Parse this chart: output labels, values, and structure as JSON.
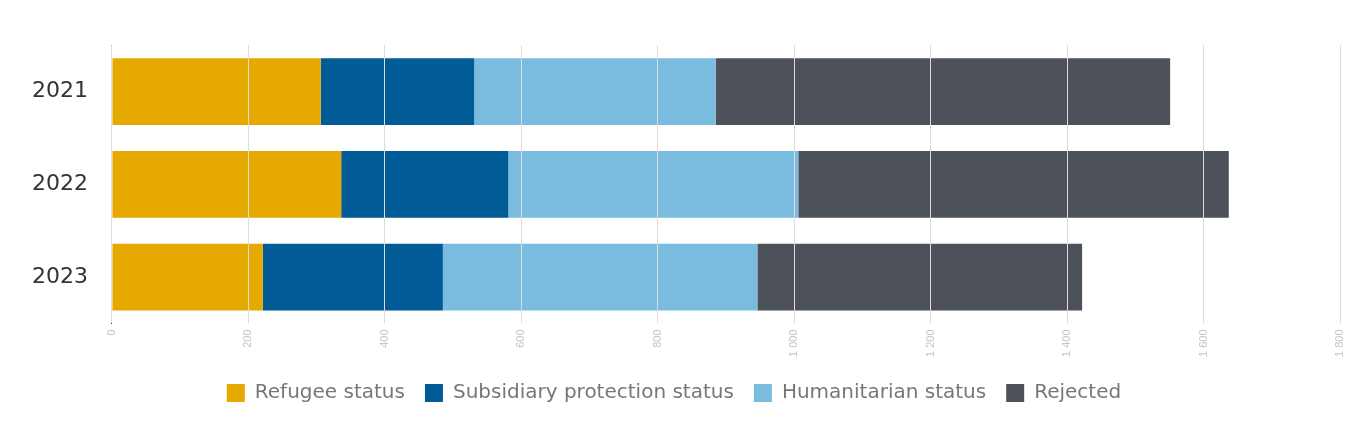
{
  "chart_data": {
    "type": "bar",
    "orientation": "horizontal",
    "stacked": true,
    "categories": [
      "2021",
      "2022",
      "2023"
    ],
    "series": [
      {
        "name": "Refugee status",
        "color": "#e5a900",
        "values": [
          306,
          336,
          221
        ]
      },
      {
        "name": "Subsidiary protection status",
        "color": "#005b96",
        "values": [
          225,
          245,
          264
        ]
      },
      {
        "name": "Humanitarian status",
        "color": "#7abbe0",
        "values": [
          354,
          425,
          461
        ]
      },
      {
        "name": "Rejected",
        "color": "#4d515a",
        "values": [
          666,
          631,
          476
        ]
      }
    ],
    "xlim": [
      0,
      1800
    ],
    "xticks": [
      0,
      200,
      400,
      600,
      800,
      {
        "value": 1000,
        "label": "1 000"
      },
      {
        "value": 1200,
        "label": "1 200"
      },
      {
        "value": 1400,
        "label": "1 400"
      },
      {
        "value": 1600,
        "label": "1 600"
      },
      {
        "value": 1800,
        "label": "1 800"
      }
    ],
    "grid": "x",
    "legend": "bottom"
  }
}
